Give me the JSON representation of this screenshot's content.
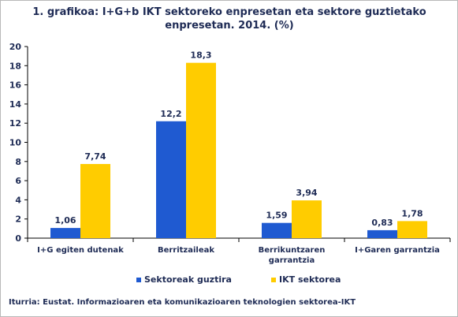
{
  "title_line1": "1. grafikoa: I+G+b IKT sektoreko enpresetan eta sektore guztietako",
  "title_line2": "enpresetan. 2014. (%)",
  "source": "Iturria: Eustat. Informazioaren eta komunikazioaren teknologien sektorea-IKT",
  "colors": {
    "series1": "#1f5ad1",
    "series2": "#ffcc00",
    "axis": "#000000",
    "text": "#1e2b55"
  },
  "chart_data": {
    "type": "bar",
    "title": "1. grafikoa: I+G+b IKT sektoreko enpresetan eta sektore guztietako enpresetan. 2014. (%)",
    "categories": [
      "I+G egiten dutenak",
      "Berritzaileak",
      "Berrikuntzaren garrantzia",
      "I+Garen garrantzia"
    ],
    "category_lines": [
      [
        "I+G egiten dutenak"
      ],
      [
        "Berritzaileak"
      ],
      [
        "Berrikuntzaren",
        "garrantzia"
      ],
      [
        "I+Garen garrantzia"
      ]
    ],
    "series": [
      {
        "name": "Sektoreak guztira",
        "values": [
          1.06,
          12.2,
          1.59,
          0.83
        ],
        "labels": [
          "1,06",
          "12,2",
          "1,59",
          "0,83"
        ]
      },
      {
        "name": "IKT sektorea",
        "values": [
          7.74,
          18.3,
          3.94,
          1.78
        ],
        "labels": [
          "7,74",
          "18,3",
          "3,94",
          "1,78"
        ]
      }
    ],
    "yticks": [
      0,
      2,
      4,
      6,
      8,
      10,
      12,
      14,
      16,
      18,
      20
    ],
    "ylim": [
      0,
      20
    ],
    "grid": false,
    "legend_position": "bottom"
  }
}
